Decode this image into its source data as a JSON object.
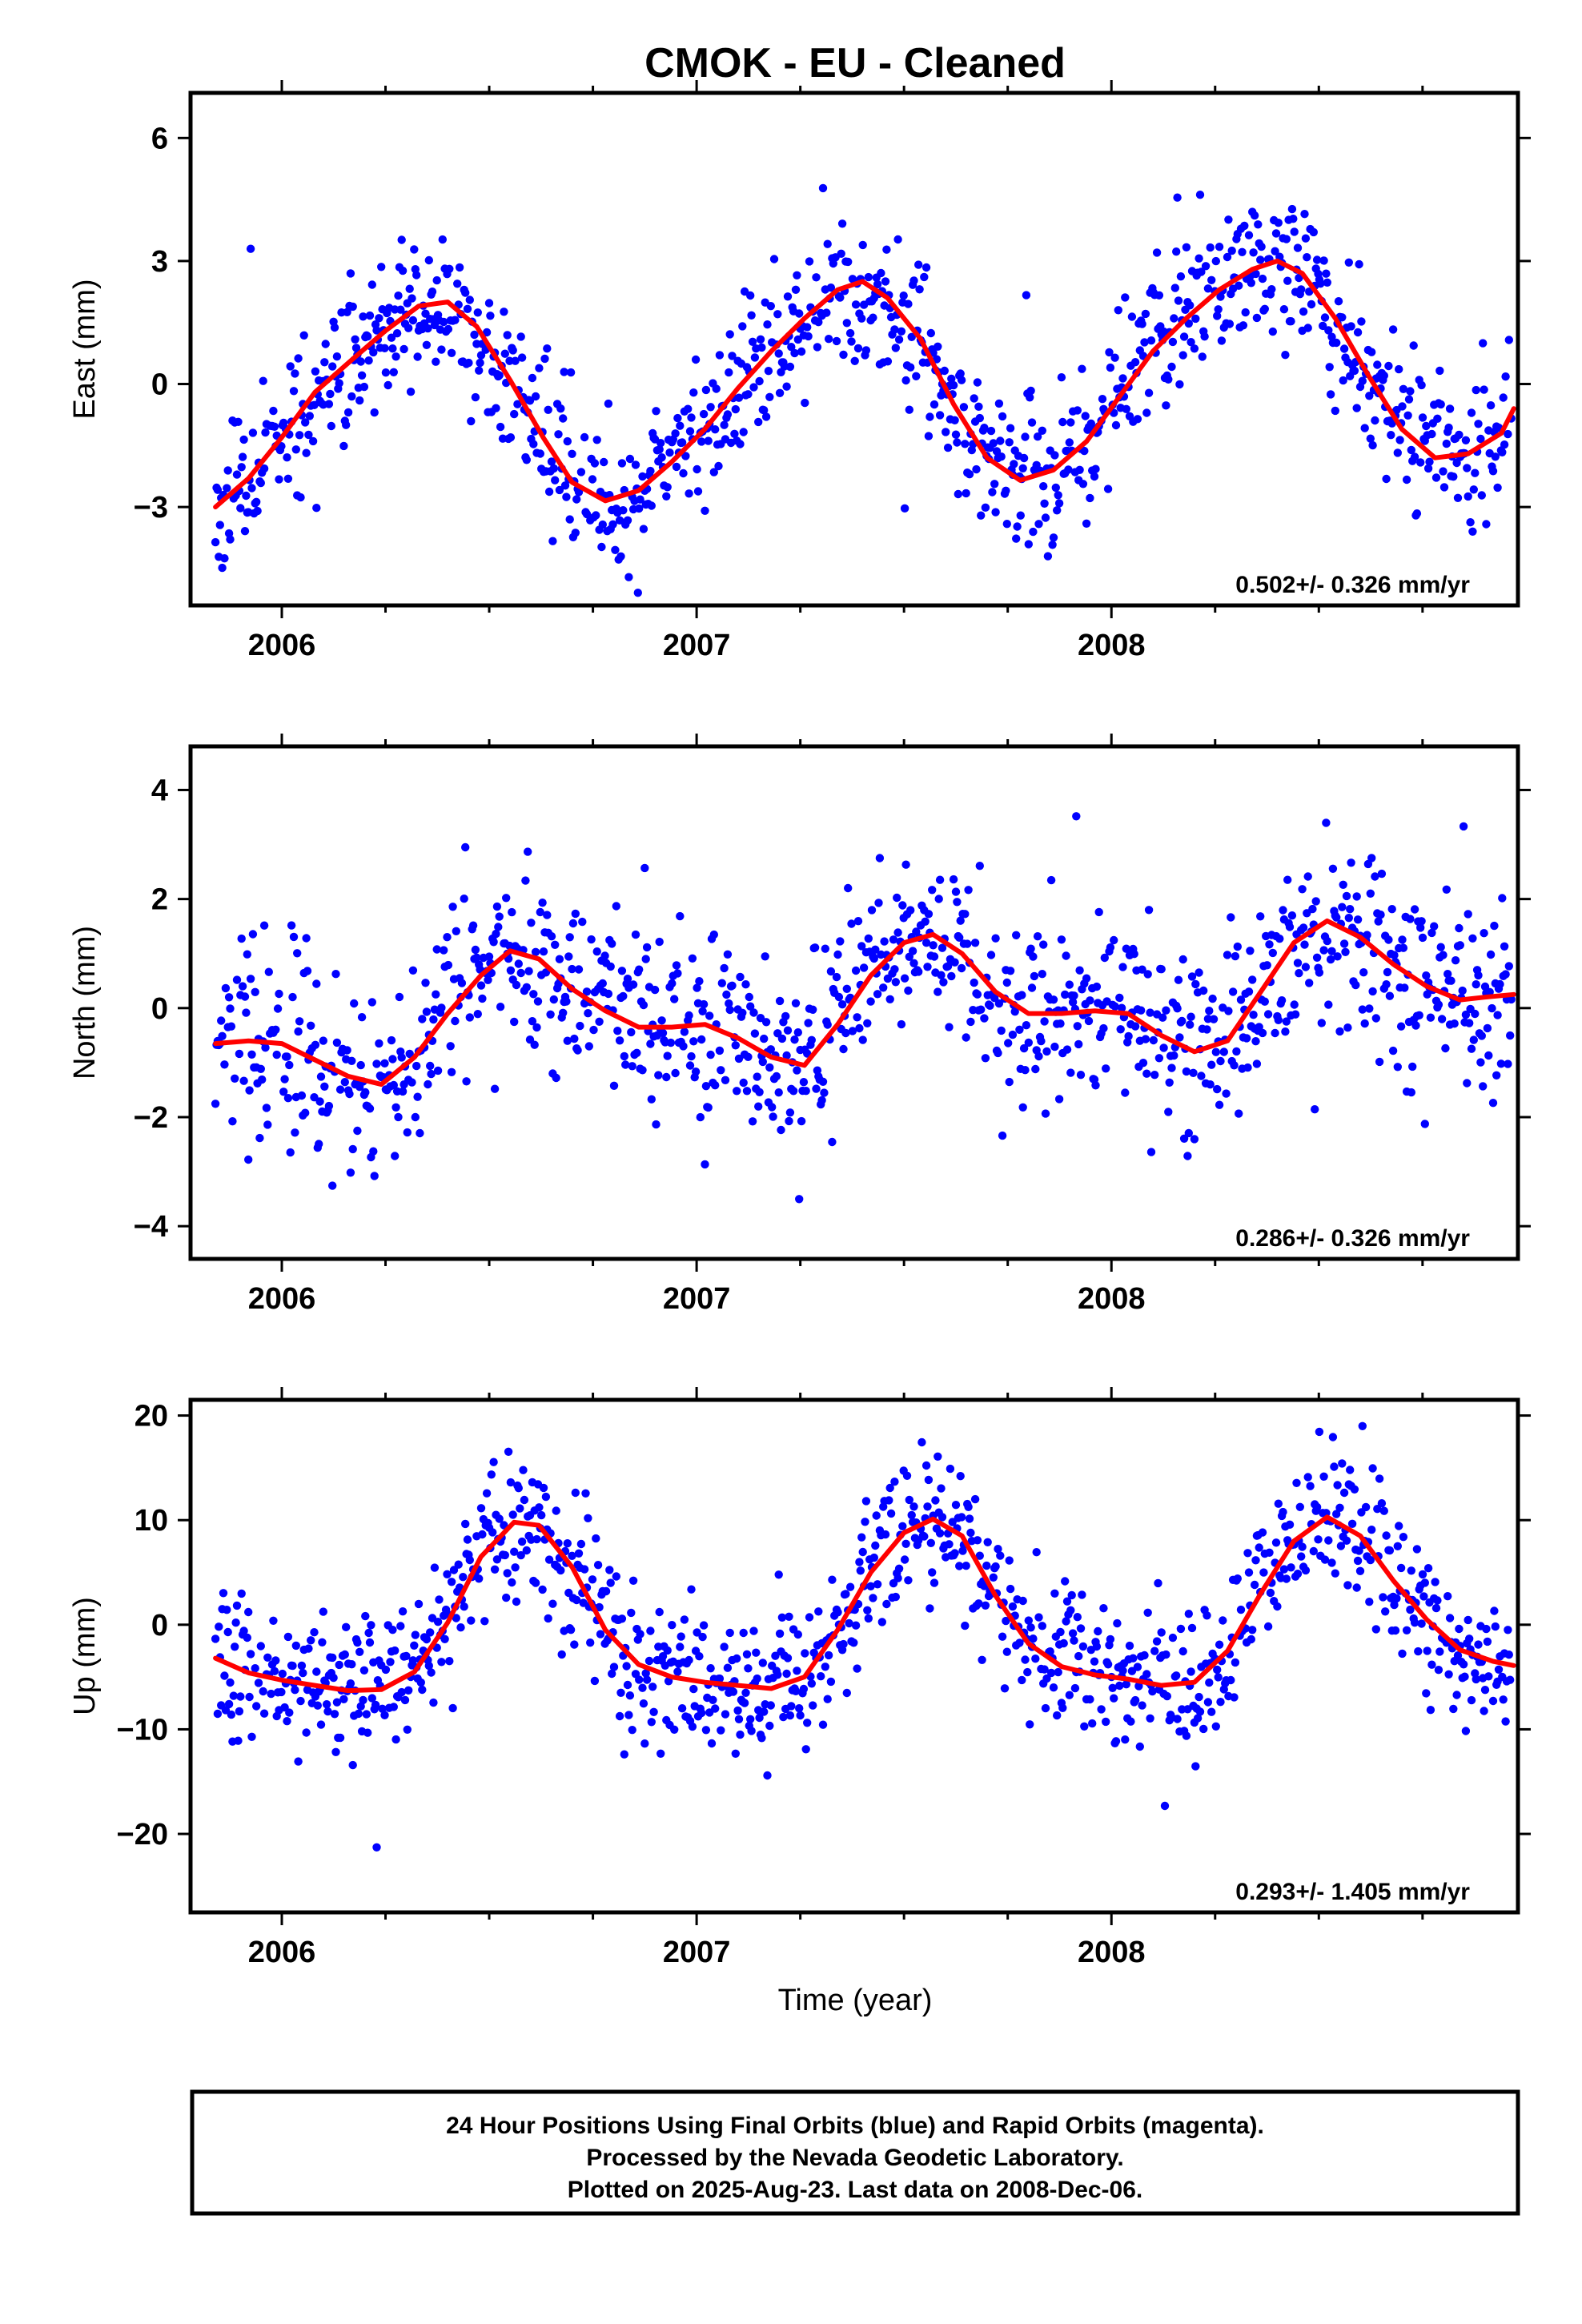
{
  "title": "CMOK  - EU - Cleaned",
  "xlabel": "Time (year)",
  "footer": [
    "24 Hour Positions Using Final Orbits (blue) and Rapid Orbits (magenta).",
    "Processed by the Nevada Geodetic Laboratory.",
    "Plotted on 2025-Aug-23. Last data on 2008-Dec-06."
  ],
  "colors": {
    "points": "#0000ff",
    "fit": "#ff0000",
    "frame": "#000000"
  },
  "chart_data": [
    {
      "type": "scatter",
      "ylabel": "East (mm)",
      "rate_label": "0.502+/- 0.326 mm/yr",
      "xlim": [
        2005.78,
        2008.98
      ],
      "ylim": [
        -5.4,
        7.1
      ],
      "x_ticks": [
        2006,
        2007,
        2008
      ],
      "x_tick_labels": [
        "2006",
        "2007",
        "2008"
      ],
      "y_ticks": [
        -3,
        0,
        3,
        6
      ],
      "y_tick_labels": [
        "−3",
        "0",
        "3",
        "6"
      ],
      "fit": [
        [
          2005.84,
          -3.0
        ],
        [
          2005.92,
          -2.3
        ],
        [
          2006.0,
          -1.3
        ],
        [
          2006.08,
          -0.2
        ],
        [
          2006.17,
          0.6
        ],
        [
          2006.25,
          1.3
        ],
        [
          2006.33,
          1.9
        ],
        [
          2006.4,
          2.0
        ],
        [
          2006.47,
          1.4
        ],
        [
          2006.55,
          0.1
        ],
        [
          2006.63,
          -1.3
        ],
        [
          2006.7,
          -2.4
        ],
        [
          2006.78,
          -2.85
        ],
        [
          2006.86,
          -2.6
        ],
        [
          2006.94,
          -1.9
        ],
        [
          2007.02,
          -1.1
        ],
        [
          2007.1,
          -0.1
        ],
        [
          2007.18,
          0.8
        ],
        [
          2007.26,
          1.6
        ],
        [
          2007.34,
          2.3
        ],
        [
          2007.4,
          2.5
        ],
        [
          2007.46,
          2.1
        ],
        [
          2007.54,
          1.1
        ],
        [
          2007.62,
          -0.5
        ],
        [
          2007.7,
          -1.8
        ],
        [
          2007.78,
          -2.35
        ],
        [
          2007.86,
          -2.1
        ],
        [
          2007.94,
          -1.4
        ],
        [
          2008.02,
          -0.3
        ],
        [
          2008.1,
          0.8
        ],
        [
          2008.18,
          1.6
        ],
        [
          2008.26,
          2.3
        ],
        [
          2008.34,
          2.8
        ],
        [
          2008.4,
          3.0
        ],
        [
          2008.46,
          2.7
        ],
        [
          2008.54,
          1.6
        ],
        [
          2008.62,
          0.2
        ],
        [
          2008.7,
          -1.1
        ],
        [
          2008.78,
          -1.8
        ],
        [
          2008.86,
          -1.7
        ],
        [
          2008.94,
          -1.2
        ],
        [
          2008.97,
          -0.6
        ]
      ],
      "seed": 11,
      "noise": 1.0
    },
    {
      "type": "scatter",
      "ylabel": "North (mm)",
      "rate_label": "0.286+/- 0.326 mm/yr",
      "xlim": [
        2005.78,
        2008.98
      ],
      "ylim": [
        -4.6,
        4.8
      ],
      "x_ticks": [
        2006,
        2007,
        2008
      ],
      "x_tick_labels": [
        "2006",
        "2007",
        "2008"
      ],
      "y_ticks": [
        -4,
        -2,
        0,
        2,
        4
      ],
      "y_tick_labels": [
        "−4",
        "−2",
        "0",
        "2",
        "4"
      ],
      "fit": [
        [
          2005.84,
          -0.65
        ],
        [
          2005.92,
          -0.6
        ],
        [
          2006.0,
          -0.65
        ],
        [
          2006.08,
          -0.95
        ],
        [
          2006.16,
          -1.25
        ],
        [
          2006.24,
          -1.4
        ],
        [
          2006.32,
          -0.9
        ],
        [
          2006.4,
          -0.1
        ],
        [
          2006.48,
          0.6
        ],
        [
          2006.55,
          1.05
        ],
        [
          2006.62,
          0.9
        ],
        [
          2006.7,
          0.35
        ],
        [
          2006.78,
          -0.05
        ],
        [
          2006.86,
          -0.35
        ],
        [
          2006.94,
          -0.35
        ],
        [
          2007.02,
          -0.3
        ],
        [
          2007.1,
          -0.55
        ],
        [
          2007.18,
          -0.9
        ],
        [
          2007.26,
          -1.05
        ],
        [
          2007.34,
          -0.3
        ],
        [
          2007.42,
          0.6
        ],
        [
          2007.5,
          1.2
        ],
        [
          2007.57,
          1.35
        ],
        [
          2007.64,
          1.0
        ],
        [
          2007.72,
          0.3
        ],
        [
          2007.8,
          -0.1
        ],
        [
          2007.88,
          -0.1
        ],
        [
          2007.96,
          -0.05
        ],
        [
          2008.04,
          -0.1
        ],
        [
          2008.12,
          -0.5
        ],
        [
          2008.2,
          -0.8
        ],
        [
          2008.28,
          -0.6
        ],
        [
          2008.36,
          0.3
        ],
        [
          2008.44,
          1.2
        ],
        [
          2008.52,
          1.6
        ],
        [
          2008.6,
          1.3
        ],
        [
          2008.68,
          0.8
        ],
        [
          2008.76,
          0.4
        ],
        [
          2008.84,
          0.15
        ],
        [
          2008.9,
          0.2
        ],
        [
          2008.97,
          0.25
        ]
      ],
      "seed": 23,
      "noise": 0.95
    },
    {
      "type": "scatter",
      "ylabel": "Up (mm)",
      "rate_label": "0.293+/- 1.405 mm/yr",
      "xlim": [
        2005.78,
        2008.98
      ],
      "ylim": [
        -27.5,
        21.5
      ],
      "x_ticks": [
        2006,
        2007,
        2008
      ],
      "x_tick_labels": [
        "2006",
        "2007",
        "2008"
      ],
      "y_ticks": [
        -20,
        -10,
        0,
        10,
        20
      ],
      "y_tick_labels": [
        "−20",
        "−10",
        "0",
        "10",
        "20"
      ],
      "fit": [
        [
          2005.84,
          -3.2
        ],
        [
          2005.92,
          -4.6
        ],
        [
          2006.0,
          -5.3
        ],
        [
          2006.08,
          -5.8
        ],
        [
          2006.16,
          -6.3
        ],
        [
          2006.24,
          -6.2
        ],
        [
          2006.32,
          -4.5
        ],
        [
          2006.4,
          0.2
        ],
        [
          2006.48,
          6.5
        ],
        [
          2006.56,
          9.8
        ],
        [
          2006.62,
          9.5
        ],
        [
          2006.7,
          5.5
        ],
        [
          2006.78,
          -0.5
        ],
        [
          2006.86,
          -3.8
        ],
        [
          2006.94,
          -5.0
        ],
        [
          2007.02,
          -5.5
        ],
        [
          2007.1,
          -5.8
        ],
        [
          2007.18,
          -6.1
        ],
        [
          2007.26,
          -5.0
        ],
        [
          2007.34,
          -0.5
        ],
        [
          2007.42,
          5.0
        ],
        [
          2007.5,
          8.8
        ],
        [
          2007.57,
          10.1
        ],
        [
          2007.64,
          8.5
        ],
        [
          2007.72,
          2.8
        ],
        [
          2007.8,
          -1.8
        ],
        [
          2007.88,
          -4.0
        ],
        [
          2007.96,
          -4.8
        ],
        [
          2008.04,
          -5.2
        ],
        [
          2008.12,
          -5.8
        ],
        [
          2008.2,
          -5.5
        ],
        [
          2008.28,
          -2.5
        ],
        [
          2008.36,
          3.0
        ],
        [
          2008.44,
          8.0
        ],
        [
          2008.52,
          10.3
        ],
        [
          2008.6,
          8.5
        ],
        [
          2008.68,
          4.2
        ],
        [
          2008.76,
          0.5
        ],
        [
          2008.84,
          -2.4
        ],
        [
          2008.92,
          -3.5
        ],
        [
          2008.97,
          -3.9
        ]
      ],
      "seed": 37,
      "noise": 3.8
    }
  ]
}
